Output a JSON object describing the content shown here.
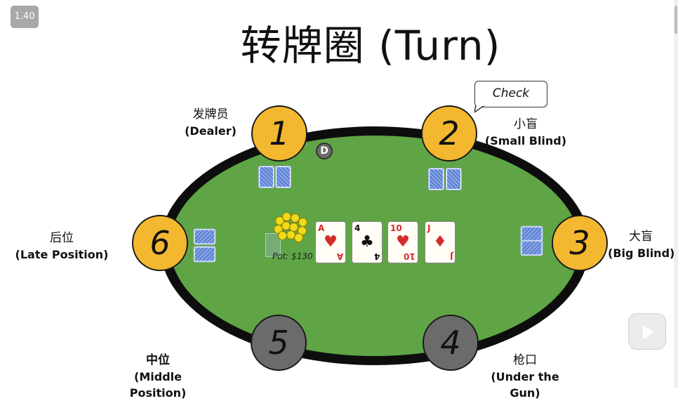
{
  "speed_badge": "1.40",
  "title": "转牌圈 (Turn)",
  "speech_bubble": "Check",
  "dealer_button": "D",
  "pot_text": "Pot: $130",
  "seats": [
    {
      "number": "1",
      "zh": "发牌员",
      "en": "(Dealer)",
      "state": "active"
    },
    {
      "number": "2",
      "zh": "小盲",
      "en": "(Small Blind)",
      "state": "active"
    },
    {
      "number": "3",
      "zh": "大盲",
      "en": "(Big Blind)",
      "state": "active"
    },
    {
      "number": "4",
      "zh": "枪口",
      "en": "(Under the Gun)",
      "state": "folded"
    },
    {
      "number": "5",
      "zh": "中位",
      "en": "(Middle Position)",
      "state": "folded"
    },
    {
      "number": "6",
      "zh": "后位",
      "en": "(Late Position)",
      "state": "active"
    }
  ],
  "board": [
    {
      "rank": "A",
      "suit": "♥",
      "color": "red"
    },
    {
      "rank": "4",
      "suit": "♣",
      "color": "black"
    },
    {
      "rank": "10",
      "suit": "♥",
      "color": "red"
    },
    {
      "rank": "J",
      "suit": "♦",
      "color": "red"
    }
  ],
  "colors": {
    "felt": "#5fa546",
    "rail": "#0d0d0d",
    "active_seat": "#f3b82f",
    "folded_seat": "#6b6b6b"
  },
  "icons": {
    "play": "play-icon"
  }
}
